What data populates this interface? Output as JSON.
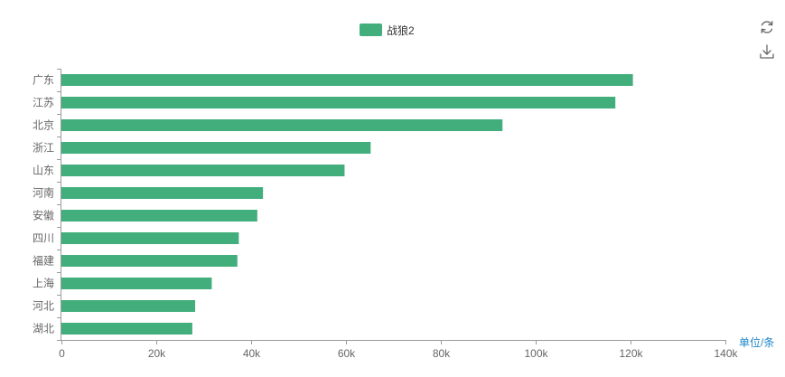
{
  "toolbox": {
    "refresh_icon": "refresh-icon",
    "download_icon": "download-icon"
  },
  "colors": {
    "bar": "#41ae7c",
    "axis": "#9a9a9a",
    "tick_text": "#666666",
    "unit_text": "#1e88c7"
  },
  "chart_data": {
    "type": "bar",
    "orientation": "horizontal",
    "legend": [
      "战狼2"
    ],
    "legend_position": "top-center",
    "categories": [
      "广东",
      "江苏",
      "北京",
      "浙江",
      "山东",
      "河南",
      "安徽",
      "四川",
      "福建",
      "上海",
      "河北",
      "湖北"
    ],
    "series": [
      {
        "name": "战狼2",
        "values": [
          120500,
          116800,
          93000,
          65200,
          59700,
          42500,
          41300,
          37400,
          37100,
          31700,
          28200,
          27600
        ]
      }
    ],
    "xlim": [
      0,
      140000
    ],
    "xticks": [
      0,
      20000,
      40000,
      60000,
      80000,
      100000,
      120000,
      140000
    ],
    "xtick_labels": [
      "0",
      "20k",
      "40k",
      "60k",
      "80k",
      "100k",
      "120k",
      "140k"
    ],
    "unit_label": "单位/条",
    "grid": false
  }
}
